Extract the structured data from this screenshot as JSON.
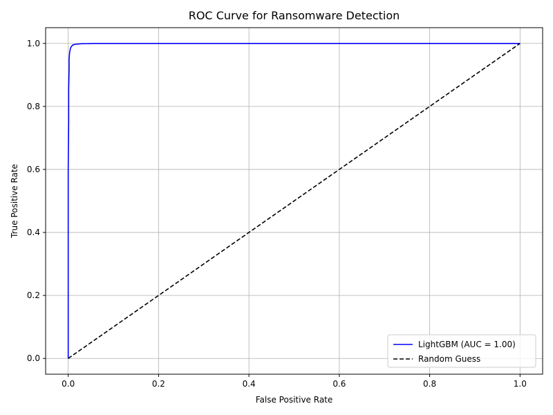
{
  "chart_data": {
    "type": "line",
    "title": "ROC Curve for Ransomware Detection",
    "xlabel": "False Positive Rate",
    "ylabel": "True Positive Rate",
    "xlim": [
      -0.05,
      1.05
    ],
    "ylim": [
      -0.05,
      1.05
    ],
    "xticks": [
      0.0,
      0.2,
      0.4,
      0.6,
      0.8,
      1.0
    ],
    "yticks": [
      0.0,
      0.2,
      0.4,
      0.6,
      0.8,
      1.0
    ],
    "xtick_labels": [
      "0.0",
      "0.2",
      "0.4",
      "0.6",
      "0.8",
      "1.0"
    ],
    "ytick_labels": [
      "0.0",
      "0.2",
      "0.4",
      "0.6",
      "0.8",
      "1.0"
    ],
    "grid": true,
    "legend_position": "lower-right",
    "series": [
      {
        "name": "LightGBM (AUC = 1.00)",
        "color": "#0000ff",
        "style": "solid",
        "x": [
          0.0,
          0.0,
          0.001,
          0.001,
          0.002,
          0.002,
          0.003,
          0.004,
          0.005,
          0.007,
          0.01,
          0.015,
          0.03,
          0.06,
          1.0
        ],
        "y": [
          0.0,
          0.6,
          0.75,
          0.85,
          0.92,
          0.95,
          0.97,
          0.978,
          0.985,
          0.99,
          0.995,
          0.997,
          0.999,
          1.0,
          1.0
        ]
      },
      {
        "name": "Random Guess",
        "color": "#000000",
        "style": "dashed",
        "x": [
          0.0,
          1.0
        ],
        "y": [
          0.0,
          1.0
        ]
      }
    ]
  }
}
